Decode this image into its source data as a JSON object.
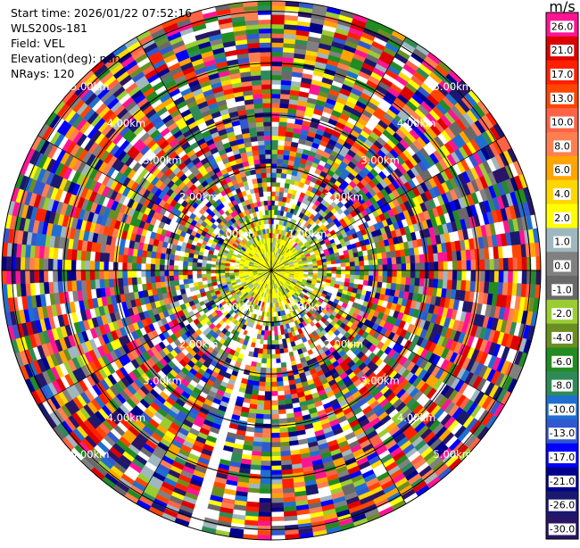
{
  "info": {
    "start_time": "Start time: 2026/01/22 07:52:16",
    "station": "WLS200s-181",
    "field": "Field: VEL",
    "elevation": "Elevation(deg): nan",
    "nrays": "NRays: 120"
  },
  "colorbar": {
    "unit": "m/s",
    "ticks": [
      "26.0",
      "21.0",
      "17.0",
      "13.0",
      "10.0",
      "8.0",
      "6.0",
      "4.0",
      "2.0",
      "1.0",
      "0.0",
      "-1.0",
      "-2.0",
      "-4.0",
      "-6.0",
      "-8.0",
      "-10.0",
      "-13.0",
      "-17.0",
      "-21.0",
      "-26.0",
      "-30.0"
    ],
    "colors": [
      "#ff1493",
      "#dd0000",
      "#ff2000",
      "#ff4500",
      "#ff6347",
      "#ff7f50",
      "#ffa500",
      "#ffd700",
      "#ffff00",
      "#9fb8c0",
      "#808080",
      "#696969",
      "#9acd32",
      "#6b8e23",
      "#228b22",
      "#2e8b57",
      "#1e6fd0",
      "#3158d0",
      "#0000ff",
      "#00008b",
      "#191970",
      "#2a1466"
    ]
  },
  "chart_data": {
    "type": "heatmap",
    "projection": "polar (PPI)",
    "field": "VEL",
    "nrays": 120,
    "range_ring_labels": [
      "1.00km",
      "2.00km",
      "3.00km",
      "4.00km",
      "5.00km"
    ],
    "range_ring_km": [
      1,
      2,
      3,
      4,
      5
    ],
    "max_range_km": 5.2,
    "grid": true,
    "value_range": [
      -30,
      26
    ],
    "unit": "m/s",
    "missing_rays_azimuth_deg": [
      195,
      198
    ]
  }
}
